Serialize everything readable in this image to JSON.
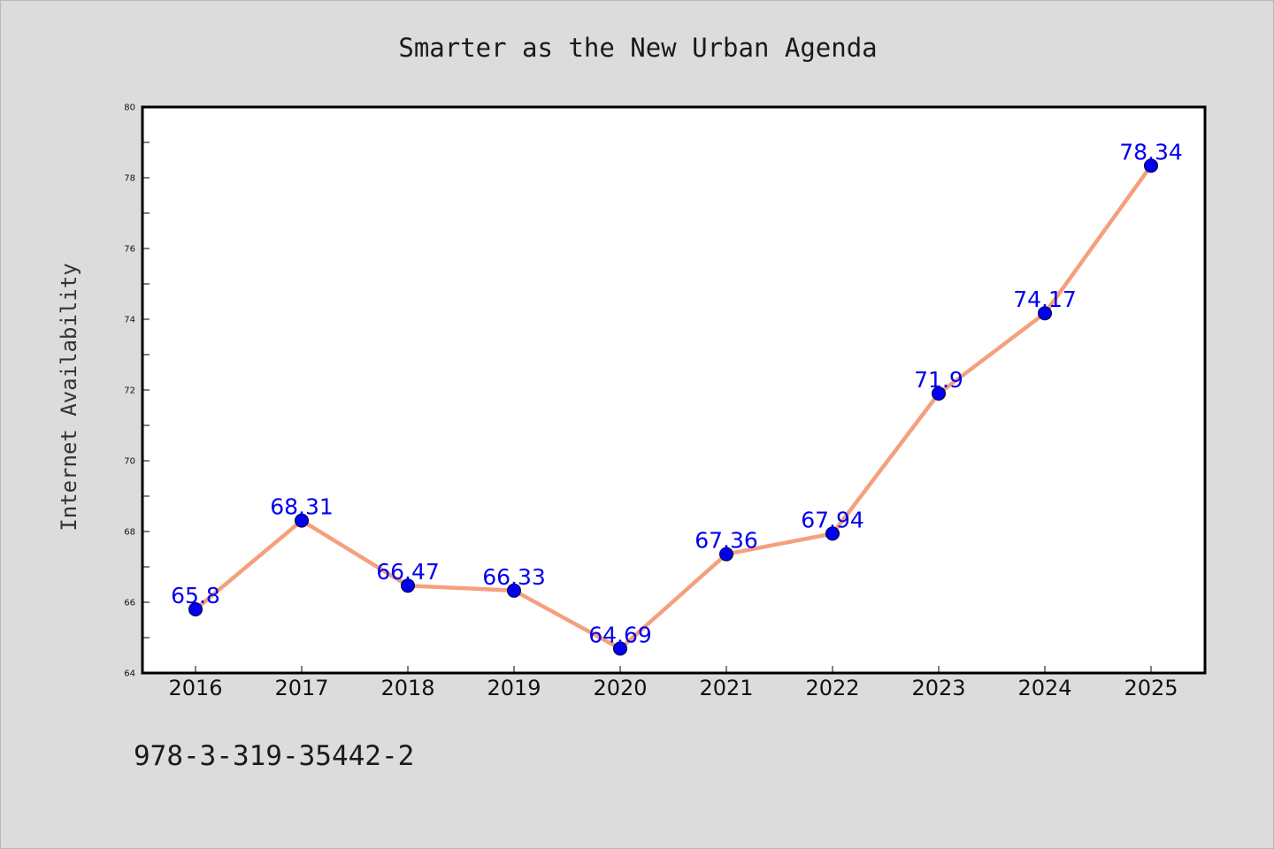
{
  "chart_data": {
    "type": "line",
    "title": "Smarter as the New Urban Agenda",
    "xlabel": "",
    "ylabel": "Internet Availability",
    "categories": [
      "2016",
      "2017",
      "2018",
      "2019",
      "2020",
      "2021",
      "2022",
      "2023",
      "2024",
      "2025"
    ],
    "series": [
      {
        "values": [
          65.8,
          68.31,
          66.47,
          66.33,
          64.69,
          67.36,
          67.94,
          71.9,
          74.17,
          78.34
        ],
        "line_color": "#f4a07e",
        "marker_color": "#0000ee",
        "label_color": "#0000ee"
      }
    ],
    "ylim": [
      64,
      80
    ],
    "yticks": [
      64,
      66,
      68,
      70,
      72,
      74,
      76,
      78,
      80
    ],
    "grid": false,
    "legend": "none",
    "data_labels": [
      "65.8",
      "68.31",
      "66.47",
      "66.33",
      "64.69",
      "67.36",
      "67.94",
      "71.9",
      "74.17",
      "78.34"
    ]
  },
  "footer": {
    "isbn": "978-3-319-35442-2"
  },
  "colors": {
    "background": "#dcdcdc",
    "plot_area": "#ffffff",
    "axis": "#000000"
  }
}
